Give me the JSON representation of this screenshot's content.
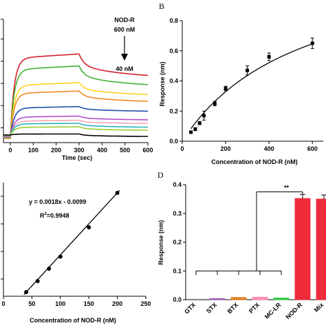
{
  "chart_data": [
    {
      "panel": "A",
      "type": "line",
      "xlabel": "Time (sec)",
      "ylabel": "",
      "xlim": [
        -30,
        600
      ],
      "ylim": [
        0,
        1
      ],
      "xticks": [
        0,
        100,
        200,
        300,
        400,
        500,
        600
      ],
      "annotation": {
        "top": "NOD-R",
        "mid": "600 nM",
        "bottom": "40 nM"
      },
      "series": [
        {
          "color": "#d21f2a",
          "plateau": 0.74,
          "end": 0.545
        },
        {
          "color": "#3fb034",
          "plateau": 0.64,
          "end": 0.47
        },
        {
          "color": "#ffd21f",
          "plateau": 0.5,
          "end": 0.39
        },
        {
          "color": "#f08a24",
          "plateau": 0.43,
          "end": 0.335
        },
        {
          "color": "#1f4fae",
          "plateau": 0.3,
          "end": 0.255
        },
        {
          "color": "#b04fc9",
          "plateau": 0.22,
          "end": 0.185
        },
        {
          "color": "#f6a6b8",
          "plateau": 0.185,
          "end": 0.155
        },
        {
          "color": "#2bb3c0",
          "plateau": 0.16,
          "end": 0.125
        },
        {
          "color": "#9acd32",
          "plateau": 0.13,
          "end": 0.1
        },
        {
          "color": "#000000",
          "plateau": 0.07,
          "end": 0.05
        }
      ]
    },
    {
      "panel": "B",
      "type": "scatter",
      "xlabel": "Concentration of NOD-R (nM)",
      "ylabel": "Response (nm)",
      "xlim": [
        0,
        650
      ],
      "ylim": [
        0,
        0.8
      ],
      "xticks": [
        0,
        200,
        400,
        600
      ],
      "yticks": [
        "0.0",
        "0.2",
        "0.4",
        "0.6",
        "0.8"
      ],
      "x": [
        40,
        60,
        80,
        100,
        150,
        200,
        300,
        400,
        600
      ],
      "y": [
        0.06,
        0.08,
        0.12,
        0.17,
        0.25,
        0.35,
        0.47,
        0.56,
        0.65
      ],
      "err": [
        0.005,
        0.01,
        0.01,
        0.03,
        0.015,
        0.015,
        0.03,
        0.025,
        0.035
      ]
    },
    {
      "panel": "C",
      "type": "scatter",
      "xlabel": "Concentration of NOD-R (nM)",
      "ylabel": "",
      "xlim": [
        0,
        250
      ],
      "ylim": [
        0.05,
        0.38
      ],
      "xticks": [
        0,
        50,
        100,
        150,
        200,
        250
      ],
      "equation": "y = 0.0018x - 0.0099",
      "r2_prefix": "R",
      "r2_sup": "2",
      "r2_suffix": "=0.9948",
      "x": [
        40,
        60,
        80,
        100,
        150,
        200
      ],
      "y": [
        0.062,
        0.094,
        0.13,
        0.165,
        0.25,
        0.35
      ],
      "fit": {
        "slope": 0.0018,
        "intercept": -0.0099
      }
    },
    {
      "panel": "D",
      "type": "bar",
      "xlabel": "",
      "ylabel": "Response (nm)",
      "ylim": [
        0,
        0.4
      ],
      "yticks": [
        "0.0",
        "0.1",
        "0.2",
        "0.3",
        "0.4"
      ],
      "categories": [
        "GTX",
        "STX",
        "BTX",
        "PTX",
        "MC-LR",
        "NOD-R",
        "Mix"
      ],
      "values": [
        0.002,
        0.004,
        0.008,
        0.009,
        0.006,
        0.352,
        0.35
      ],
      "colors": [
        "#8a8a8a",
        "#9b59b6",
        "#e67e22",
        "#ff8fb0",
        "#2ecc40",
        "#ee2b3b",
        "#ee2b3b"
      ],
      "err_top": 0.014,
      "significance": "**"
    }
  ]
}
